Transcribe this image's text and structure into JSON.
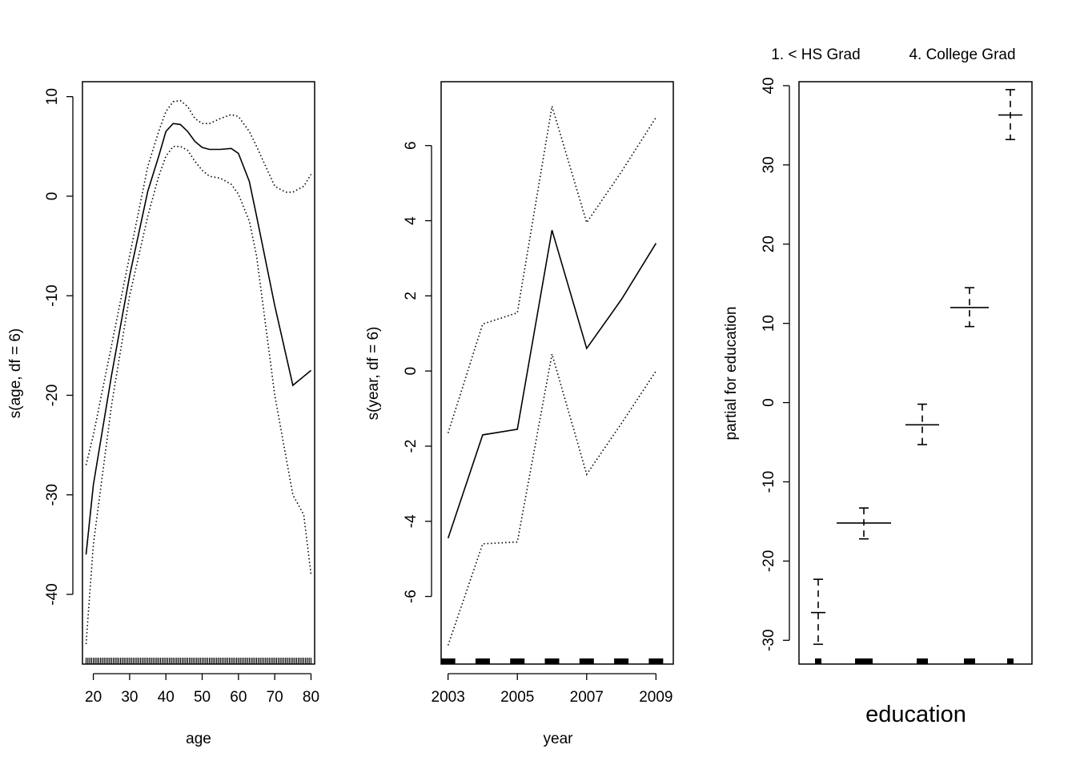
{
  "colors": {
    "line": "#000000",
    "background": "#ffffff"
  },
  "chart_data": [
    {
      "type": "line",
      "xlabel": "age",
      "ylabel": "s(age, df = 6)",
      "xlim": [
        17,
        81
      ],
      "ylim": [
        -47,
        11.5
      ],
      "xticks": [
        20,
        30,
        40,
        50,
        60,
        70,
        80
      ],
      "yticks": [
        -40,
        -30,
        -20,
        -10,
        0,
        10
      ],
      "series": [
        {
          "style": "solid",
          "x": [
            18,
            20,
            25,
            30,
            35,
            38,
            40,
            42,
            44,
            46,
            48,
            50,
            52,
            55,
            58,
            60,
            63,
            65,
            70,
            75,
            80
          ],
          "y": [
            -36,
            -29,
            -18,
            -8,
            0.5,
            4,
            6.5,
            7.3,
            7.2,
            6.5,
            5.5,
            4.9,
            4.7,
            4.7,
            4.8,
            4.3,
            1.5,
            -2,
            -11,
            -19,
            -17.5
          ]
        },
        {
          "style": "dotted",
          "x": [
            18,
            20,
            25,
            30,
            35,
            38,
            40,
            42,
            44,
            46,
            48,
            50,
            52,
            55,
            58,
            60,
            63,
            65,
            70,
            73,
            75,
            78,
            80
          ],
          "y": [
            -27,
            -24,
            -15,
            -6,
            3,
            6.5,
            8.5,
            9.5,
            9.6,
            9,
            7.8,
            7.3,
            7.3,
            7.8,
            8.2,
            8,
            6.5,
            5,
            1,
            0.4,
            0.4,
            1,
            2.2
          ]
        },
        {
          "style": "dotted",
          "x": [
            18,
            20,
            25,
            30,
            35,
            38,
            40,
            42,
            44,
            46,
            48,
            50,
            52,
            55,
            58,
            60,
            63,
            65,
            70,
            75,
            78,
            80
          ],
          "y": [
            -45,
            -35,
            -21,
            -10,
            -2,
            2,
            4,
            5,
            5,
            4.6,
            3.5,
            2.6,
            2,
            1.8,
            1.2,
            0.2,
            -2.5,
            -6,
            -20,
            -30,
            -32,
            -38
          ]
        }
      ],
      "rug": {
        "range": [
          18,
          80
        ]
      }
    },
    {
      "type": "line",
      "xlabel": "year",
      "ylabel": "s(year, df = 6)",
      "xlim": [
        2002.8,
        2009.5
      ],
      "ylim": [
        -7.8,
        7.7
      ],
      "xticks": [
        2003,
        2005,
        2007,
        2009
      ],
      "yticks": [
        -6,
        -4,
        -2,
        0,
        2,
        4,
        6
      ],
      "series": [
        {
          "style": "solid",
          "x": [
            2003,
            2004,
            2005,
            2006,
            2007,
            2008,
            2009
          ],
          "y": [
            -4.45,
            -1.7,
            -1.55,
            3.75,
            0.6,
            1.9,
            3.4
          ]
        },
        {
          "style": "dotted",
          "x": [
            2003,
            2004,
            2005,
            2006,
            2007,
            2008,
            2009
          ],
          "y": [
            -1.65,
            1.25,
            1.55,
            7.05,
            3.95,
            5.3,
            6.75
          ]
        },
        {
          "style": "dotted",
          "x": [
            2003,
            2004,
            2005,
            2006,
            2007,
            2008,
            2009
          ],
          "y": [
            -7.3,
            -4.6,
            -4.55,
            0.45,
            -2.75,
            -1.4,
            0
          ]
        }
      ],
      "rug": {
        "x": [
          2003,
          2004,
          2005,
          2006,
          2007,
          2008,
          2009
        ]
      }
    },
    {
      "type": "step",
      "xlabel": "education",
      "ylabel": "partial for education",
      "top_labels": [
        "1. < HS Grad",
        "4. College Grad"
      ],
      "ylim": [
        -33,
        40.5
      ],
      "yticks": [
        -30,
        -20,
        -10,
        0,
        10,
        20,
        30,
        40
      ],
      "levels": [
        {
          "value": -26.5,
          "upper": -22.3,
          "lower": -30.5
        },
        {
          "value": -15.2,
          "upper": -13.3,
          "lower": -17.2
        },
        {
          "value": -2.8,
          "upper": -0.2,
          "lower": -5.3
        },
        {
          "value": 12,
          "upper": 14.5,
          "lower": 9.6
        },
        {
          "value": 36.3,
          "upper": 39.5,
          "lower": 33.2
        }
      ]
    }
  ]
}
